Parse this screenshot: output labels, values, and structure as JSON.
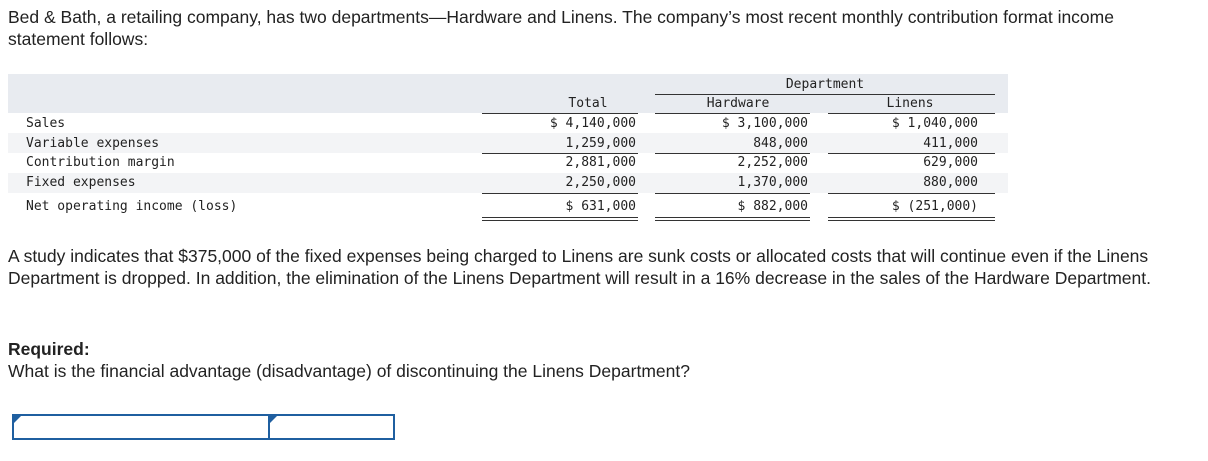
{
  "intro": "Bed & Bath, a retailing company, has two departments—Hardware and Linens. The company’s most recent monthly contribution format income statement follows:",
  "table": {
    "group_header": "Department",
    "col_total": "Total",
    "col_hardware": "Hardware",
    "col_linens": "Linens",
    "rows": [
      {
        "label": "Sales",
        "total": "$ 4,140,000",
        "hardware": "$ 3,100,000",
        "linens": "$ 1,040,000"
      },
      {
        "label": "Variable expenses",
        "total": "1,259,000",
        "hardware": "848,000",
        "linens": "411,000"
      },
      {
        "label": "Contribution margin",
        "total": "2,881,000",
        "hardware": "2,252,000",
        "linens": "629,000"
      },
      {
        "label": "Fixed expenses",
        "total": "2,250,000",
        "hardware": "1,370,000",
        "linens": "880,000"
      },
      {
        "label": "Net operating income (loss)",
        "total": "$ 631,000",
        "hardware": "$ 882,000",
        "linens": "$ (251,000)"
      }
    ]
  },
  "study": "A study indicates that $375,000 of the fixed expenses being charged to Linens are sunk costs or allocated costs that will continue even if the Linens Department is dropped. In addition, the elimination of the Linens Department will result in a 16% decrease in the sales of the Hardware Department.",
  "required_heading": "Required:",
  "required_question": "What is the financial advantage (disadvantage) of discontinuing the Linens Department?",
  "colors": {
    "band": "#e8ebf0",
    "stripe": "#f3f4f6",
    "input_border": "#1f5fa0"
  }
}
